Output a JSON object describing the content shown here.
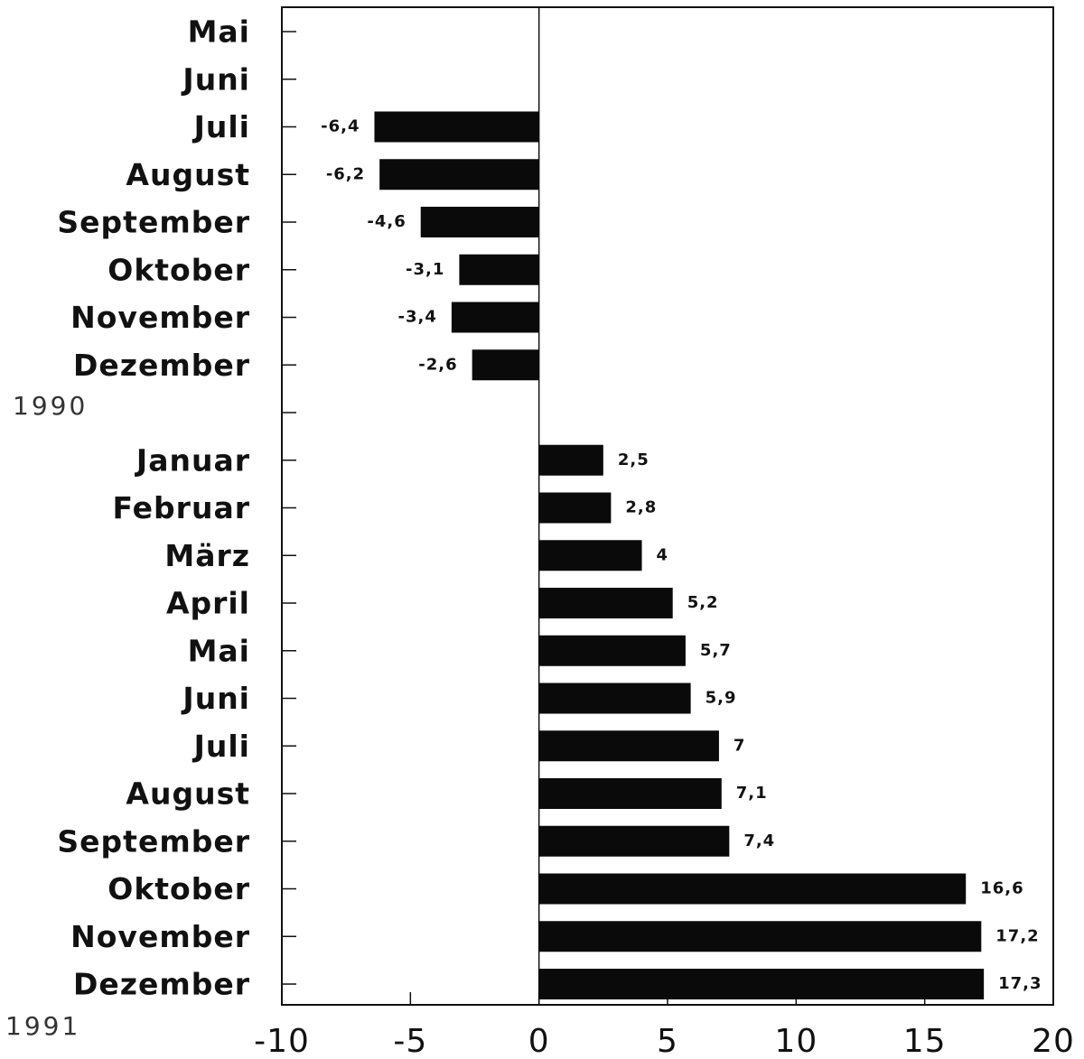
{
  "chart_data": {
    "type": "bar",
    "orientation": "horizontal",
    "categories": [
      "Mai",
      "Juni",
      "Juli",
      "August",
      "September",
      "Oktober",
      "November",
      "Dezember",
      null,
      "Januar",
      "Februar",
      "März",
      "April",
      "Mai",
      "Juni",
      "Juli",
      "August",
      "September",
      "Oktober",
      "November",
      "Dezember"
    ],
    "values": [
      null,
      null,
      -6.4,
      -6.2,
      -4.6,
      -3.1,
      -3.4,
      -2.6,
      null,
      2.5,
      2.8,
      4,
      5.2,
      5.7,
      5.9,
      7,
      7.1,
      7.4,
      16.6,
      17.2,
      17.3
    ],
    "value_labels": [
      null,
      null,
      "-6,4",
      "-6,2",
      "-4,6",
      "-3,1",
      "-3,4",
      "-2,6",
      null,
      "2,5",
      "2,8",
      "4",
      "5,2",
      "5,7",
      "5,9",
      "7",
      "7,1",
      "7,4",
      "16,6",
      "17,2",
      "17,3"
    ],
    "color": "#0a0a0a",
    "xlim": [
      -10,
      20
    ],
    "xticks": [
      -10,
      -5,
      0,
      5,
      10,
      15,
      20
    ],
    "annotations": [
      "1990",
      "1991"
    ]
  }
}
